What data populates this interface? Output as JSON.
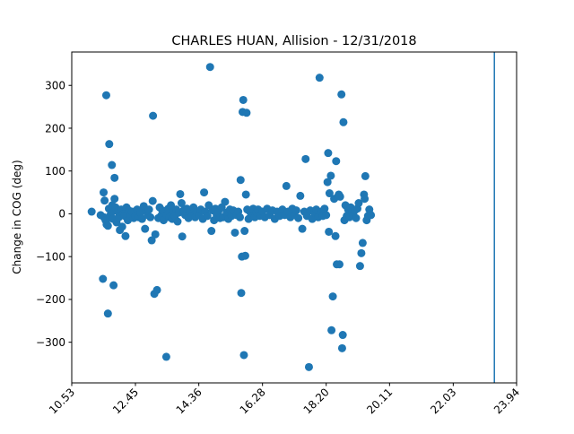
{
  "chart_data": {
    "type": "scatter",
    "title": "CHARLES HUAN, Allision - 12/31/2018",
    "xlabel": "",
    "ylabel": "Change in COG (deg)",
    "xlim": [
      10.53,
      23.94
    ],
    "ylim": [
      -395,
      378
    ],
    "x_ticks": [
      10.53,
      12.45,
      14.36,
      16.28,
      18.2,
      20.11,
      22.03,
      23.94
    ],
    "x_tick_labels": [
      "10.53",
      "12.45",
      "14.36",
      "16.28",
      "18.20",
      "20.11",
      "22.03",
      "23.94"
    ],
    "y_ticks": [
      -300,
      -200,
      -100,
      0,
      100,
      200,
      300
    ],
    "y_tick_labels": [
      "−300",
      "−200",
      "−100",
      "0",
      "100",
      "200",
      "300"
    ],
    "x_tick_rotation": 45,
    "grid": false,
    "marker_color": "#1f77b4",
    "vertical_line": {
      "x": 23.27,
      "color": "#1f77b4"
    },
    "points": [
      [
        11.13,
        5
      ],
      [
        11.4,
        -3
      ],
      [
        11.49,
        50
      ],
      [
        11.52,
        31
      ],
      [
        11.57,
        277
      ],
      [
        11.62,
        -233
      ],
      [
        11.66,
        163
      ],
      [
        11.7,
        -10
      ],
      [
        11.74,
        114
      ],
      [
        11.79,
        -167
      ],
      [
        11.82,
        84
      ],
      [
        11.82,
        35
      ],
      [
        11.47,
        -152
      ],
      [
        11.5,
        -8
      ],
      [
        11.55,
        -15
      ],
      [
        11.58,
        -25
      ],
      [
        11.62,
        -28
      ],
      [
        11.65,
        12
      ],
      [
        11.68,
        -5
      ],
      [
        11.72,
        2
      ],
      [
        11.75,
        20
      ],
      [
        11.78,
        -12
      ],
      [
        11.85,
        15
      ],
      [
        11.88,
        -20
      ],
      [
        11.92,
        5
      ],
      [
        11.95,
        -8
      ],
      [
        11.98,
        -38
      ],
      [
        12.02,
        10
      ],
      [
        12.05,
        -30
      ],
      [
        12.08,
        0
      ],
      [
        12.12,
        -5
      ],
      [
        12.15,
        -52
      ],
      [
        12.18,
        15
      ],
      [
        12.22,
        -15
      ],
      [
        12.25,
        8
      ],
      [
        12.3,
        -3
      ],
      [
        12.35,
        5
      ],
      [
        12.4,
        -10
      ],
      [
        12.45,
        -5
      ],
      [
        12.5,
        10
      ],
      [
        12.55,
        -8
      ],
      [
        12.6,
        3
      ],
      [
        12.65,
        -12
      ],
      [
        12.7,
        18
      ],
      [
        12.74,
        -35
      ],
      [
        12.78,
        8
      ],
      [
        12.82,
        -3
      ],
      [
        12.86,
        10
      ],
      [
        12.9,
        -8
      ],
      [
        12.94,
        -62
      ],
      [
        12.97,
        30
      ],
      [
        12.98,
        229
      ],
      [
        13.02,
        -187
      ],
      [
        13.05,
        -48
      ],
      [
        13.1,
        -178
      ],
      [
        13.14,
        -10
      ],
      [
        13.18,
        15
      ],
      [
        13.22,
        -5
      ],
      [
        13.26,
        8
      ],
      [
        13.3,
        -15
      ],
      [
        13.34,
        5
      ],
      [
        13.38,
        -334
      ],
      [
        13.4,
        -3
      ],
      [
        13.44,
        12
      ],
      [
        13.48,
        -8
      ],
      [
        13.52,
        20
      ],
      [
        13.56,
        -12
      ],
      [
        13.6,
        5
      ],
      [
        13.64,
        -5
      ],
      [
        13.68,
        10
      ],
      [
        13.72,
        -18
      ],
      [
        13.76,
        3
      ],
      [
        13.8,
        46
      ],
      [
        13.84,
        25
      ],
      [
        13.86,
        -53
      ],
      [
        13.9,
        8
      ],
      [
        13.95,
        -3
      ],
      [
        14.0,
        12
      ],
      [
        14.05,
        -10
      ],
      [
        14.1,
        5
      ],
      [
        14.15,
        -5
      ],
      [
        14.2,
        15
      ],
      [
        14.25,
        -8
      ],
      [
        14.3,
        3
      ],
      [
        14.36,
        -3
      ],
      [
        14.42,
        10
      ],
      [
        14.48,
        -12
      ],
      [
        14.52,
        50
      ],
      [
        14.56,
        5
      ],
      [
        14.62,
        -5
      ],
      [
        14.66,
        20
      ],
      [
        14.7,
        343
      ],
      [
        14.74,
        -40
      ],
      [
        14.78,
        8
      ],
      [
        14.82,
        -15
      ],
      [
        14.86,
        12
      ],
      [
        14.9,
        -3
      ],
      [
        14.95,
        5
      ],
      [
        15.0,
        -10
      ],
      [
        15.05,
        15
      ],
      [
        15.1,
        -8
      ],
      [
        15.15,
        28
      ],
      [
        15.2,
        3
      ],
      [
        15.25,
        -12
      ],
      [
        15.3,
        10
      ],
      [
        15.35,
        -5
      ],
      [
        15.4,
        8
      ],
      [
        15.45,
        -44
      ],
      [
        15.5,
        -3
      ],
      [
        15.55,
        5
      ],
      [
        15.6,
        -8
      ],
      [
        15.62,
        79
      ],
      [
        15.64,
        -185
      ],
      [
        15.66,
        -100
      ],
      [
        15.68,
        238
      ],
      [
        15.7,
        266
      ],
      [
        15.72,
        -330
      ],
      [
        15.74,
        -40
      ],
      [
        15.76,
        -98
      ],
      [
        15.78,
        45
      ],
      [
        15.8,
        236
      ],
      [
        15.82,
        10
      ],
      [
        15.86,
        -12
      ],
      [
        15.9,
        5
      ],
      [
        15.95,
        -5
      ],
      [
        16.0,
        12
      ],
      [
        16.05,
        -8
      ],
      [
        16.1,
        3
      ],
      [
        16.15,
        10
      ],
      [
        16.2,
        -5
      ],
      [
        16.28,
        5
      ],
      [
        16.35,
        -8
      ],
      [
        16.42,
        12
      ],
      [
        16.5,
        -3
      ],
      [
        16.58,
        8
      ],
      [
        16.65,
        -12
      ],
      [
        16.72,
        5
      ],
      [
        16.8,
        -5
      ],
      [
        16.88,
        10
      ],
      [
        16.95,
        -3
      ],
      [
        17.0,
        65
      ],
      [
        17.05,
        5
      ],
      [
        17.12,
        -8
      ],
      [
        17.18,
        12
      ],
      [
        17.24,
        -3
      ],
      [
        17.3,
        8
      ],
      [
        17.36,
        -10
      ],
      [
        17.42,
        42
      ],
      [
        17.48,
        -35
      ],
      [
        17.54,
        5
      ],
      [
        17.58,
        128
      ],
      [
        17.62,
        -5
      ],
      [
        17.68,
        -358
      ],
      [
        17.72,
        8
      ],
      [
        17.78,
        -12
      ],
      [
        17.84,
        3
      ],
      [
        17.9,
        10
      ],
      [
        17.96,
        -8
      ],
      [
        18.0,
        318
      ],
      [
        18.05,
        5
      ],
      [
        18.1,
        -5
      ],
      [
        18.15,
        12
      ],
      [
        18.2,
        -3
      ],
      [
        18.24,
        74
      ],
      [
        18.26,
        142
      ],
      [
        18.28,
        -42
      ],
      [
        18.3,
        48
      ],
      [
        18.34,
        89
      ],
      [
        18.36,
        -272
      ],
      [
        18.4,
        -193
      ],
      [
        18.44,
        35
      ],
      [
        18.48,
        -52
      ],
      [
        18.5,
        123
      ],
      [
        18.52,
        -118
      ],
      [
        18.56,
        41
      ],
      [
        18.58,
        45
      ],
      [
        18.6,
        -118
      ],
      [
        18.62,
        40
      ],
      [
        18.66,
        279
      ],
      [
        18.68,
        -314
      ],
      [
        18.7,
        -283
      ],
      [
        18.72,
        214
      ],
      [
        18.75,
        -15
      ],
      [
        18.78,
        20
      ],
      [
        18.82,
        -5
      ],
      [
        18.86,
        10
      ],
      [
        18.9,
        -8
      ],
      [
        18.94,
        15
      ],
      [
        18.98,
        5
      ],
      [
        19.02,
        -3
      ],
      [
        19.06,
        8
      ],
      [
        19.1,
        -10
      ],
      [
        19.14,
        12
      ],
      [
        19.18,
        25
      ],
      [
        19.22,
        -122
      ],
      [
        19.26,
        -92
      ],
      [
        19.3,
        -68
      ],
      [
        19.34,
        45
      ],
      [
        19.36,
        35
      ],
      [
        19.38,
        88
      ],
      [
        19.42,
        -15
      ],
      [
        19.46,
        -5
      ],
      [
        19.5,
        10
      ],
      [
        19.55,
        -3
      ]
    ]
  }
}
